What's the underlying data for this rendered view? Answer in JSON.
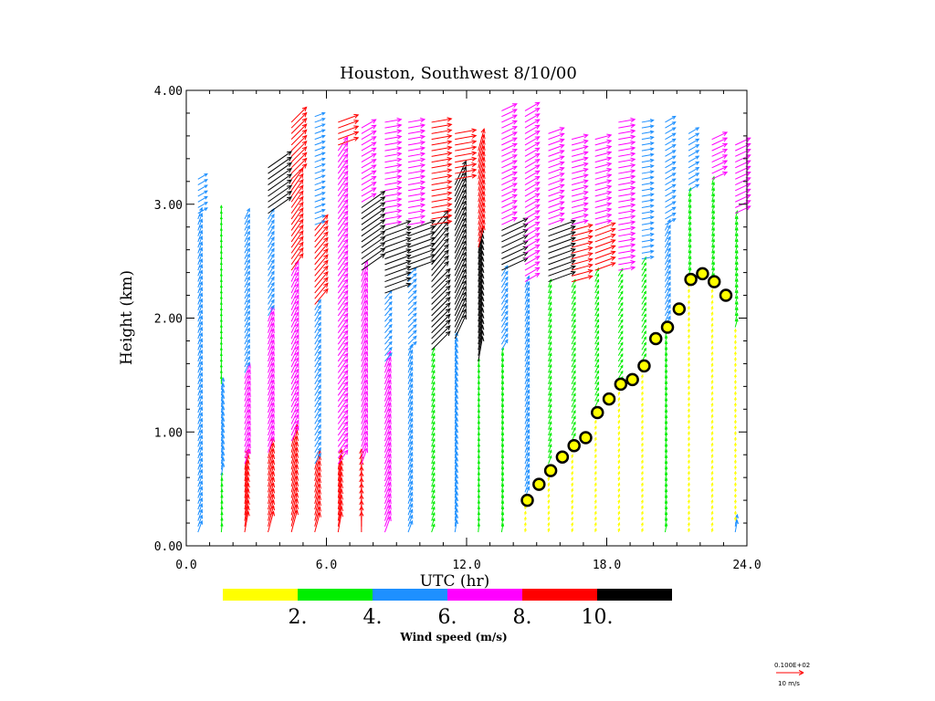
{
  "chart_data": {
    "type": "wind-profile",
    "title": "Houston, Southwest   8/10/00",
    "xlabel": "UTC (hr)",
    "ylabel": "Height (km)",
    "xlim": [
      0,
      24
    ],
    "ylim": [
      0,
      4
    ],
    "xticks": [
      "0.0",
      "6.0",
      "12.0",
      "18.0",
      "24.0"
    ],
    "yticks": [
      "0.00",
      "1.00",
      "2.00",
      "3.00",
      "4.00"
    ],
    "colorbar": {
      "label": "Wind speed (m/s)",
      "colors": [
        "#ffff00",
        "#00ee00",
        "#1e90ff",
        "#ff00ff",
        "#ff0000",
        "#000000"
      ],
      "tick_labels": [
        "2.",
        "4.",
        "6.",
        "8.",
        "10."
      ],
      "boundaries": [
        2,
        4,
        6,
        8,
        10
      ]
    },
    "reference_vector": {
      "value_label": "0.100E+02",
      "unit_label": "10 m/s"
    },
    "mixing_height": [
      {
        "t": 14.6,
        "h": 0.4
      },
      {
        "t": 15.1,
        "h": 0.54
      },
      {
        "t": 15.6,
        "h": 0.66
      },
      {
        "t": 16.1,
        "h": 0.78
      },
      {
        "t": 16.6,
        "h": 0.88
      },
      {
        "t": 17.1,
        "h": 0.95
      },
      {
        "t": 17.6,
        "h": 1.17
      },
      {
        "t": 18.1,
        "h": 1.29
      },
      {
        "t": 18.6,
        "h": 1.42
      },
      {
        "t": 19.1,
        "h": 1.46
      },
      {
        "t": 19.6,
        "h": 1.58
      },
      {
        "t": 20.1,
        "h": 1.82
      },
      {
        "t": 20.6,
        "h": 1.92
      },
      {
        "t": 21.1,
        "h": 2.08
      },
      {
        "t": 21.6,
        "h": 2.34
      },
      {
        "t": 22.1,
        "h": 2.39
      },
      {
        "t": 22.6,
        "h": 2.32
      },
      {
        "t": 23.1,
        "h": 2.2
      }
    ],
    "profiles": [
      {
        "t": 0.5,
        "top": 3.25,
        "segments": [
          {
            "to": 2.9,
            "speed": 5.0,
            "dir": 200
          },
          {
            "to": 3.25,
            "speed": 4.5,
            "dir": 240
          }
        ]
      },
      {
        "t": 1.5,
        "top": 2.95,
        "segments": [
          {
            "to": 0.6,
            "speed": 3.5,
            "dir": 185
          },
          {
            "to": 1.4,
            "speed": 5.0,
            "dir": 190
          },
          {
            "to": 2.95,
            "speed": 3.2,
            "dir": 180
          }
        ]
      },
      {
        "t": 2.5,
        "top": 2.9,
        "segments": [
          {
            "to": 0.7,
            "speed": 8.8,
            "dir": 190
          },
          {
            "to": 1.5,
            "speed": 6.5,
            "dir": 200
          },
          {
            "to": 2.9,
            "speed": 4.8,
            "dir": 205
          }
        ]
      },
      {
        "t": 3.5,
        "top": 3.35,
        "segments": [
          {
            "to": 0.8,
            "speed": 9.0,
            "dir": 195
          },
          {
            "to": 2.0,
            "speed": 7.0,
            "dir": 200
          },
          {
            "to": 2.9,
            "speed": 5.0,
            "dir": 210
          },
          {
            "to": 3.35,
            "speed": 12.0,
            "dir": 235
          }
        ]
      },
      {
        "t": 4.5,
        "top": 3.75,
        "segments": [
          {
            "to": 0.9,
            "speed": 9.5,
            "dir": 195
          },
          {
            "to": 2.4,
            "speed": 7.0,
            "dir": 205
          },
          {
            "to": 3.2,
            "speed": 8.5,
            "dir": 215
          },
          {
            "to": 3.75,
            "speed": 9.0,
            "dir": 225
          }
        ]
      },
      {
        "t": 5.5,
        "top": 3.8,
        "segments": [
          {
            "to": 0.7,
            "speed": 8.5,
            "dir": 195
          },
          {
            "to": 2.1,
            "speed": 5.0,
            "dir": 210
          },
          {
            "to": 2.8,
            "speed": 8.5,
            "dir": 220
          },
          {
            "to": 3.8,
            "speed": 4.5,
            "dir": 250
          }
        ]
      },
      {
        "t": 6.5,
        "top": 3.75,
        "segments": [
          {
            "to": 0.7,
            "speed": 8.5,
            "dir": 190
          },
          {
            "to": 3.5,
            "speed": 7.0,
            "dir": 215
          },
          {
            "to": 3.75,
            "speed": 9.0,
            "dir": 250
          }
        ]
      },
      {
        "t": 7.5,
        "top": 3.7,
        "segments": [
          {
            "to": 0.7,
            "speed": 8.5,
            "dir": 180
          },
          {
            "to": 2.4,
            "speed": 7.0,
            "dir": 200
          },
          {
            "to": 3.0,
            "speed": 12.0,
            "dir": 235
          },
          {
            "to": 3.7,
            "speed": 7.0,
            "dir": 240
          }
        ]
      },
      {
        "t": 8.5,
        "top": 3.75,
        "segments": [
          {
            "to": 1.6,
            "speed": 7.0,
            "dir": 200
          },
          {
            "to": 2.2,
            "speed": 4.5,
            "dir": 220
          },
          {
            "to": 2.8,
            "speed": 11.5,
            "dir": 250
          },
          {
            "to": 3.75,
            "speed": 7.0,
            "dir": 260
          }
        ]
      },
      {
        "t": 9.5,
        "top": 3.75,
        "segments": [
          {
            "to": 1.7,
            "speed": 5.0,
            "dir": 200
          },
          {
            "to": 2.4,
            "speed": 4.8,
            "dir": 225
          },
          {
            "to": 2.8,
            "speed": 12.0,
            "dir": 250
          },
          {
            "to": 3.75,
            "speed": 7.0,
            "dir": 260
          }
        ]
      },
      {
        "t": 10.5,
        "top": 3.75,
        "segments": [
          {
            "to": 1.7,
            "speed": 3.5,
            "dir": 200
          },
          {
            "to": 2.3,
            "speed": 11.0,
            "dir": 225
          },
          {
            "to": 2.8,
            "speed": 11.0,
            "dir": 220
          },
          {
            "to": 3.75,
            "speed": 8.5,
            "dir": 260
          }
        ]
      },
      {
        "t": 11.5,
        "top": 3.65,
        "segments": [
          {
            "to": 1.8,
            "speed": 5.0,
            "dir": 190
          },
          {
            "to": 3.2,
            "speed": 11.0,
            "dir": 205
          },
          {
            "to": 3.65,
            "speed": 9.0,
            "dir": 260
          }
        ]
      },
      {
        "t": 12.5,
        "top": 3.5,
        "segments": [
          {
            "to": 1.6,
            "speed": 3.5,
            "dir": 185
          },
          {
            "to": 2.6,
            "speed": 10.5,
            "dir": 190
          },
          {
            "to": 3.5,
            "speed": 9.5,
            "dir": 195
          }
        ]
      },
      {
        "t": 13.5,
        "top": 3.85,
        "segments": [
          {
            "to": 1.7,
            "speed": 3.5,
            "dir": 190
          },
          {
            "to": 2.4,
            "speed": 5.0,
            "dir": 210
          },
          {
            "to": 2.8,
            "speed": 12.0,
            "dir": 245
          },
          {
            "to": 3.85,
            "speed": 7.0,
            "dir": 245
          }
        ]
      },
      {
        "t": 14.5,
        "top": 3.85,
        "segments": [
          {
            "to": 0.4,
            "speed": 1.5,
            "dir": 190
          },
          {
            "to": 2.3,
            "speed": 5.0,
            "dir": 200
          },
          {
            "to": 3.85,
            "speed": 7.0,
            "dir": 240
          }
        ]
      },
      {
        "t": 15.5,
        "top": 3.65,
        "segments": [
          {
            "to": 0.7,
            "speed": 1.5,
            "dir": 190
          },
          {
            "to": 2.3,
            "speed": 3.5,
            "dir": 200
          },
          {
            "to": 2.8,
            "speed": 12.0,
            "dir": 250
          },
          {
            "to": 3.65,
            "speed": 7.0,
            "dir": 250
          }
        ]
      },
      {
        "t": 16.5,
        "top": 3.6,
        "segments": [
          {
            "to": 0.9,
            "speed": 1.5,
            "dir": 195
          },
          {
            "to": 2.3,
            "speed": 3.5,
            "dir": 205
          },
          {
            "to": 2.8,
            "speed": 9.0,
            "dir": 255
          },
          {
            "to": 3.6,
            "speed": 7.0,
            "dir": 255
          }
        ]
      },
      {
        "t": 17.5,
        "top": 3.6,
        "segments": [
          {
            "to": 1.2,
            "speed": 1.5,
            "dir": 195
          },
          {
            "to": 2.4,
            "speed": 3.5,
            "dir": 205
          },
          {
            "to": 2.8,
            "speed": 9.0,
            "dir": 250
          },
          {
            "to": 3.6,
            "speed": 7.0,
            "dir": 255
          }
        ]
      },
      {
        "t": 18.5,
        "top": 3.75,
        "segments": [
          {
            "to": 1.4,
            "speed": 1.5,
            "dir": 195
          },
          {
            "to": 2.4,
            "speed": 3.5,
            "dir": 210
          },
          {
            "to": 3.75,
            "speed": 7.0,
            "dir": 260
          }
        ]
      },
      {
        "t": 19.5,
        "top": 3.75,
        "segments": [
          {
            "to": 1.6,
            "speed": 1.5,
            "dir": 195
          },
          {
            "to": 2.5,
            "speed": 3.5,
            "dir": 210
          },
          {
            "to": 3.75,
            "speed": 5.0,
            "dir": 260
          }
        ]
      },
      {
        "t": 20.5,
        "top": 3.75,
        "segments": [
          {
            "to": 1.9,
            "speed": 3.5,
            "dir": 190
          },
          {
            "to": 2.8,
            "speed": 5.0,
            "dir": 205
          },
          {
            "to": 3.75,
            "speed": 5.0,
            "dir": 240
          }
        ]
      },
      {
        "t": 21.5,
        "top": 3.65,
        "segments": [
          {
            "to": 2.3,
            "speed": 1.5,
            "dir": 190
          },
          {
            "to": 3.1,
            "speed": 3.5,
            "dir": 195
          },
          {
            "to": 3.65,
            "speed": 5.0,
            "dir": 240
          }
        ]
      },
      {
        "t": 22.5,
        "top": 3.6,
        "segments": [
          {
            "to": 2.3,
            "speed": 1.5,
            "dir": 190
          },
          {
            "to": 3.2,
            "speed": 3.5,
            "dir": 195
          },
          {
            "to": 3.6,
            "speed": 7.0,
            "dir": 245
          }
        ]
      },
      {
        "t": 23.5,
        "top": 3.55,
        "segments": [
          {
            "to": 0.2,
            "speed": 5.0,
            "dir": 190
          },
          {
            "to": 1.9,
            "speed": 1.5,
            "dir": 185
          },
          {
            "to": 2.9,
            "speed": 3.5,
            "dir": 195
          },
          {
            "to": 3.55,
            "speed": 7.0,
            "dir": 245
          }
        ]
      }
    ]
  }
}
